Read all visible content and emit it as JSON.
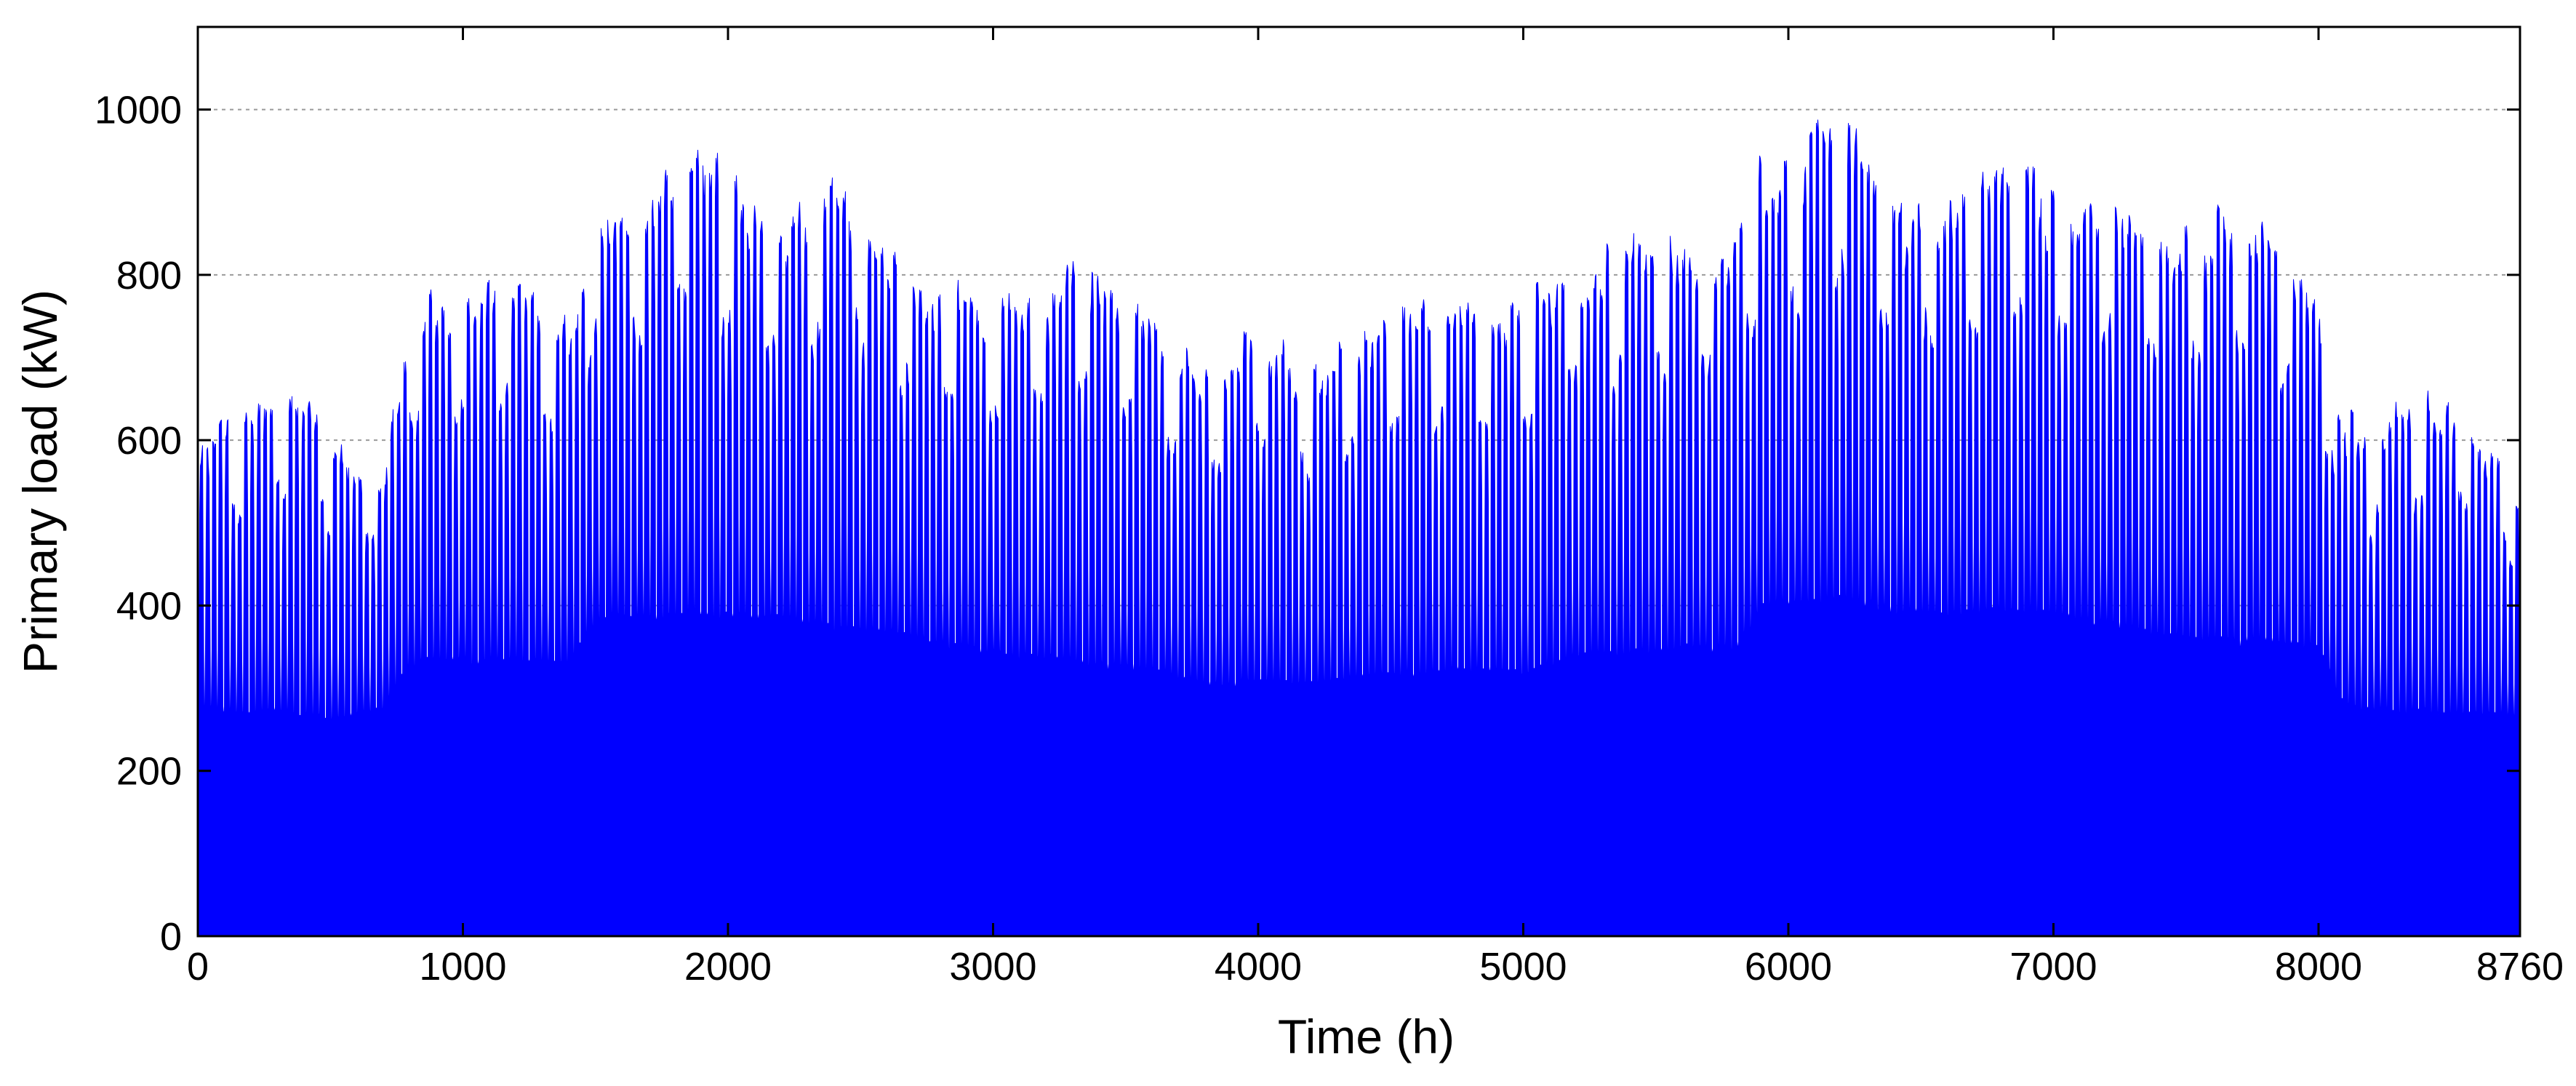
{
  "chart_data": {
    "type": "area",
    "title": "",
    "xlabel": "Time (h)",
    "ylabel": "Primary load (kW)",
    "xlim": [
      0,
      8760
    ],
    "ylim": [
      0,
      1100
    ],
    "x_ticks": [
      0,
      1000,
      2000,
      3000,
      4000,
      5000,
      6000,
      7000,
      8000,
      8760
    ],
    "x_tick_labels": [
      "0",
      "1000",
      "2000",
      "3000",
      "4000",
      "5000",
      "6000",
      "7000",
      "8000",
      "8760"
    ],
    "y_ticks": [
      0,
      200,
      400,
      600,
      800,
      1000
    ],
    "y_tick_labels": [
      "0",
      "200",
      "400",
      "600",
      "800",
      "1000"
    ],
    "grid": "horizontal-dotted",
    "series": [
      {
        "name": "Primary load",
        "color": "#0000ff",
        "sampling": "hourly",
        "n_points": 8760,
        "description": "Hourly primary load over one year; envelope values estimated from the plot",
        "envelope_hours": [
          0,
          100,
          200,
          300,
          400,
          500,
          600,
          700,
          800,
          1000,
          1200,
          1400,
          1500,
          1600,
          1700,
          1800,
          1900,
          2000,
          2200,
          2400,
          2500,
          2600,
          2800,
          3000,
          3200,
          3300,
          3400,
          3600,
          3800,
          4000,
          4200,
          4400,
          4600,
          4800,
          5000,
          5100,
          5200,
          5400,
          5600,
          5800,
          5900,
          6000,
          6100,
          6200,
          6300,
          6400,
          6600,
          6800,
          6900,
          7000,
          7200,
          7400,
          7600,
          7800,
          7900,
          8000,
          8100,
          8200,
          8300,
          8400,
          8500,
          8600,
          8700,
          8760
        ],
        "daily_peak_kw": [
          600,
          630,
          640,
          670,
          670,
          610,
          580,
          560,
          780,
          770,
          820,
          740,
          910,
          900,
          890,
          960,
          970,
          930,
          860,
          920,
          910,
          840,
          790,
          780,
          790,
          840,
          830,
          750,
          700,
          750,
          690,
          740,
          790,
          780,
          760,
          830,
          820,
          850,
          850,
          850,
          950,
          940,
          990,
          1000,
          990,
          910,
          900,
          950,
          960,
          900,
          900,
          870,
          880,
          860,
          830,
          770,
          640,
          610,
          640,
          670,
          650,
          620,
          580,
          540
        ],
        "night_base_kw": [
          280,
          275,
          270,
          275,
          270,
          265,
          270,
          275,
          335,
          335,
          335,
          330,
          385,
          390,
          385,
          390,
          395,
          390,
          385,
          375,
          370,
          370,
          355,
          345,
          340,
          335,
          330,
          325,
          305,
          310,
          305,
          315,
          320,
          325,
          320,
          330,
          340,
          345,
          350,
          350,
          400,
          405,
          405,
          410,
          405,
          395,
          390,
          395,
          395,
          390,
          380,
          365,
          360,
          360,
          355,
          350,
          280,
          275,
          275,
          275,
          270,
          270,
          270,
          265
        ]
      }
    ]
  }
}
